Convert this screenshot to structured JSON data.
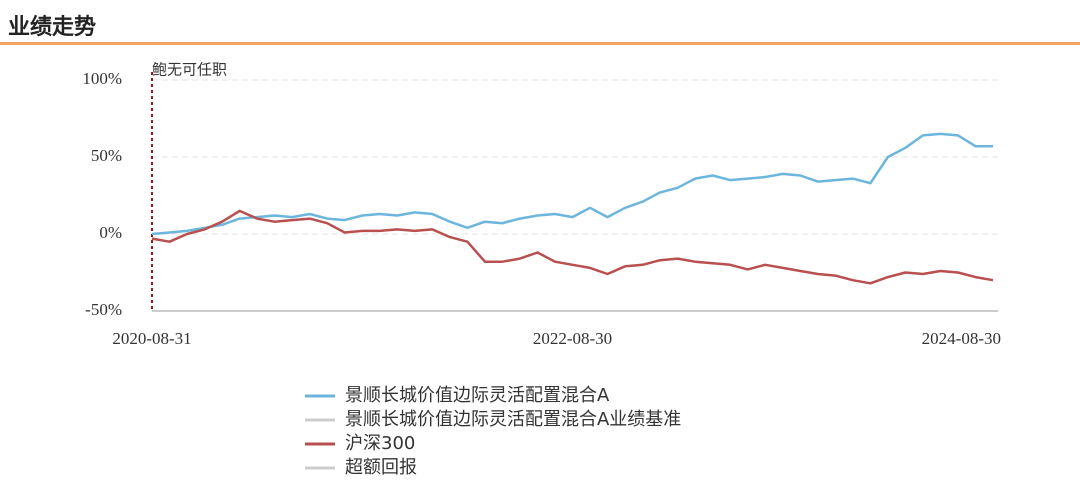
{
  "chart_data": {
    "type": "line",
    "title": "业绩走势",
    "annotation": "鲍无可任职",
    "categories": [
      "2020-08-31",
      null,
      null,
      null,
      null,
      null,
      null,
      null,
      null,
      null,
      null,
      null,
      null,
      null,
      null,
      null,
      null,
      null,
      null,
      null,
      null,
      null,
      null,
      null,
      "2022-08-30",
      null,
      null,
      null,
      null,
      null,
      null,
      null,
      null,
      null,
      null,
      null,
      null,
      null,
      null,
      null,
      null,
      null,
      null,
      null,
      null,
      null,
      null,
      null,
      "2024-08-30"
    ],
    "series": [
      {
        "name": "景顺长城价值边际灵活配置混合A",
        "color": "#6cb6dd",
        "values": [
          0,
          1,
          2,
          4,
          6,
          10,
          11,
          12,
          11,
          13,
          10,
          9,
          12,
          13,
          12,
          14,
          13,
          8,
          4,
          8,
          7,
          10,
          12,
          13,
          11,
          17,
          11,
          17,
          21,
          27,
          30,
          36,
          38,
          35,
          36,
          37,
          39,
          38,
          34,
          35,
          36,
          33,
          50,
          56,
          64,
          65,
          64,
          57,
          57
        ]
      },
      {
        "name": "沪深300",
        "color": "#b9504f",
        "values": [
          -3,
          -5,
          0,
          3,
          8,
          15,
          10,
          8,
          9,
          10,
          7,
          1,
          2,
          2,
          3,
          2,
          3,
          -2,
          -5,
          -18,
          -18,
          -16,
          -12,
          -18,
          -20,
          -22,
          -26,
          -21,
          -20,
          -17,
          -16,
          -18,
          -19,
          -20,
          -23,
          -20,
          -22,
          -24,
          -26,
          -27,
          -30,
          -32,
          -28,
          -25,
          -26,
          -24,
          -25,
          -28,
          -30
        ]
      }
    ],
    "inactive_series": [
      {
        "name": "景顺长城价值边际灵活配置混合A业绩基准",
        "color": "#cccccc"
      },
      {
        "name": "超额回报",
        "color": "#cccccc"
      }
    ],
    "ylim": [
      -50,
      100
    ],
    "yticks": [
      {
        "value": -50,
        "label": "-50%"
      },
      {
        "value": 0,
        "label": "0%"
      },
      {
        "value": 50,
        "label": "50%"
      },
      {
        "value": 100,
        "label": "100%"
      }
    ],
    "grid": true
  }
}
